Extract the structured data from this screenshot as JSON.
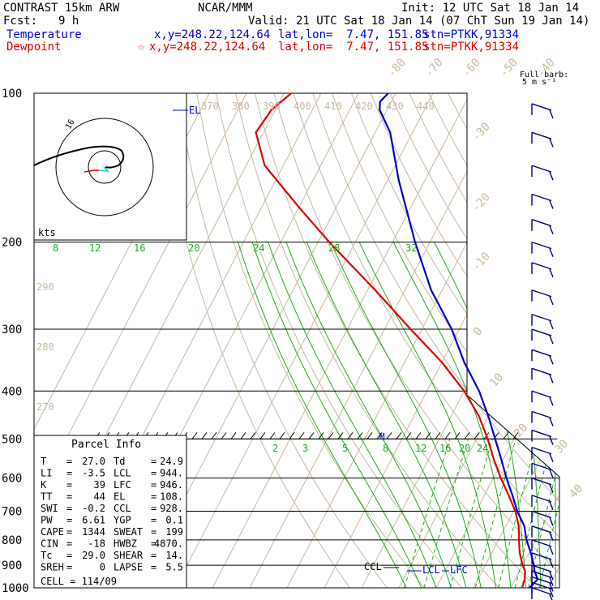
{
  "header": {
    "model": "CONTRAST 15km ARW",
    "agency": "NCAR/MMM",
    "init": "Init: 12 UTC Sat 18 Jan 14",
    "fcst_label": "Fcst:",
    "fcst_value": "9 h",
    "valid": "Valid: 21 UTC Sat 18 Jan 14 (07 ChT Sun 19 Jan 14)"
  },
  "legend": {
    "temperature": {
      "label": "Temperature",
      "xy": "x,y=248.22,124.64",
      "latlon": "lat,lon=  7.47, 151.85",
      "stn": "stn=PTKK,91334",
      "color": "#0000cc"
    },
    "dewpoint": {
      "label": "Dewpoint",
      "marker": "☆",
      "xy": "x,y=248.22,124.64",
      "latlon": "lat,lon=  7.47, 151.85",
      "stn": "stn=PTKK,91334",
      "color": "#e00000"
    }
  },
  "barbs_header": {
    "line1": "Full barb:",
    "line2": "5 m s⁻¹"
  },
  "hodograph": {
    "units": "kts",
    "label": "16"
  },
  "parcel": {
    "title": "Parcel Info",
    "rows": [
      {
        "k1": "T",
        "v1": "27.0",
        "k2": "Td",
        "v2": "24.9"
      },
      {
        "k1": "LI",
        "v1": "-3.5",
        "k2": "LCL",
        "v2": "944."
      },
      {
        "k1": "K",
        "v1": "39",
        "k2": "LFC",
        "v2": "946."
      },
      {
        "k1": "TT",
        "v1": "44",
        "k2": "EL",
        "v2": "108."
      },
      {
        "k1": "SWI",
        "v1": "-0.2",
        "k2": "CCL",
        "v2": "928."
      },
      {
        "k1": "PW",
        "v1": "6.61",
        "k2": "YGP",
        "v2": "0.1"
      },
      {
        "k1": "CAPE",
        "v1": "1344",
        "k2": "SWEAT",
        "v2": "199"
      },
      {
        "k1": "CIN",
        "v1": "-18",
        "k2": "HWBZ",
        "v2": "4870."
      },
      {
        "k1": "Tc",
        "v1": "29.0",
        "k2": "SHEAR",
        "v2": "14."
      },
      {
        "k1": "SREH",
        "v1": "0",
        "k2": "LAPSE",
        "v2": "5.5"
      }
    ],
    "cell": "CELL = 114/09"
  },
  "chart_data": {
    "type": "line",
    "subtype": "skew-T log-P",
    "y_axis": {
      "scale": "log",
      "unit": "hPa",
      "range": [
        1000,
        100
      ],
      "ticks": [
        100,
        200,
        300,
        400,
        500,
        600,
        700,
        800,
        900,
        1000
      ]
    },
    "isotherm_labels": [
      -80,
      -70,
      -60,
      -50,
      -40,
      -30,
      -20,
      -10,
      0,
      10,
      20,
      30,
      40
    ],
    "dry_adiabat_labels": [
      270,
      280,
      290,
      370,
      380,
      390,
      400,
      410,
      420,
      430,
      440
    ],
    "moist_adiabat_labels": [
      8,
      12,
      16,
      20,
      24,
      28,
      32
    ],
    "mixing_ratio_labels": [
      2,
      3,
      5,
      8,
      12,
      16,
      20,
      24
    ],
    "series": [
      {
        "name": "Temperature",
        "color": "#0000cc",
        "points": [
          [
            1000,
            25
          ],
          [
            960,
            26
          ],
          [
            925,
            24
          ],
          [
            900,
            23
          ],
          [
            850,
            20.5
          ],
          [
            800,
            17.5
          ],
          [
            750,
            15
          ],
          [
            700,
            11
          ],
          [
            650,
            7.5
          ],
          [
            600,
            3.5
          ],
          [
            550,
            -0.5
          ],
          [
            500,
            -5
          ],
          [
            450,
            -10
          ],
          [
            400,
            -16
          ],
          [
            350,
            -24
          ],
          [
            300,
            -32
          ],
          [
            250,
            -43
          ],
          [
            200,
            -54
          ],
          [
            150,
            -67
          ],
          [
            120,
            -76
          ],
          [
            108,
            -82
          ],
          [
            104,
            -83
          ],
          [
            100,
            -82
          ]
        ]
      },
      {
        "name": "Dewpoint",
        "color": "#e00000",
        "points": [
          [
            1000,
            23
          ],
          [
            960,
            22.5
          ],
          [
            925,
            21.5
          ],
          [
            900,
            20
          ],
          [
            850,
            17.5
          ],
          [
            800,
            15.5
          ],
          [
            750,
            13.5
          ],
          [
            700,
            10.5
          ],
          [
            650,
            6.5
          ],
          [
            600,
            2
          ],
          [
            550,
            -2.5
          ],
          [
            500,
            -7
          ],
          [
            450,
            -12.5
          ],
          [
            400,
            -20
          ],
          [
            350,
            -30
          ],
          [
            300,
            -43
          ],
          [
            250,
            -58
          ],
          [
            200,
            -77
          ],
          [
            170,
            -90
          ],
          [
            140,
            -105
          ],
          [
            120,
            -112
          ],
          [
            108,
            -111
          ],
          [
            100,
            -108
          ]
        ]
      }
    ],
    "annotations": [
      "EL",
      "CCL",
      "LCL",
      "LFC",
      "M"
    ],
    "wind_levels": [
      105,
      120,
      140,
      160,
      180,
      200,
      220,
      250,
      280,
      300,
      330,
      360,
      400,
      440,
      480,
      520,
      560,
      600,
      650,
      700,
      750,
      800,
      850,
      900,
      925,
      950,
      975,
      1000
    ]
  },
  "colors": {
    "grid": "#000000",
    "isotherm": "#c9b89f",
    "moist": "#22aa22",
    "dewpt": "#e00000",
    "temp": "#0000cc",
    "barb": "#000080"
  }
}
